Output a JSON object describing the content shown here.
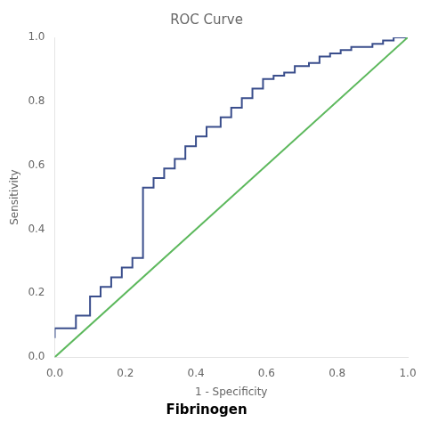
{
  "chart_data": {
    "type": "line",
    "title": "ROC Curve",
    "subtitle": "Fibrinogen",
    "xlabel": "1 - Specificity",
    "ylabel": "Sensitivity",
    "xlim": [
      0.0,
      1.0
    ],
    "ylim": [
      0.0,
      1.0
    ],
    "xticks": [
      {
        "value": 0.0,
        "label": "0.0"
      },
      0.2,
      0.4,
      0.6,
      0.8,
      {
        "value": 1.0,
        "label": "1.0"
      }
    ],
    "yticks": [
      {
        "value": 0.0,
        "label": "0.0"
      },
      0.2,
      0.4,
      0.6,
      0.8,
      {
        "value": 1.0,
        "label": "1.0"
      }
    ],
    "grid": false,
    "series": [
      {
        "color": "#5cb85c",
        "x": [
          0,
          1
        ],
        "values": [
          0,
          1
        ]
      },
      {
        "color": "#3a4e8c",
        "x": [
          0.0,
          0.0,
          0.06,
          0.06,
          0.1,
          0.1,
          0.13,
          0.13,
          0.16,
          0.16,
          0.19,
          0.19,
          0.22,
          0.22,
          0.25,
          0.25,
          0.25,
          0.25,
          0.28,
          0.28,
          0.31,
          0.31,
          0.34,
          0.34,
          0.37,
          0.37,
          0.4,
          0.4,
          0.43,
          0.43,
          0.47,
          0.47,
          0.5,
          0.5,
          0.53,
          0.53,
          0.56,
          0.56,
          0.59,
          0.59,
          0.62,
          0.62,
          0.65,
          0.65,
          0.68,
          0.68,
          0.72,
          0.72,
          0.75,
          0.75,
          0.78,
          0.78,
          0.81,
          0.81,
          0.84,
          0.84,
          0.87,
          0.87,
          0.9,
          0.9,
          0.93,
          0.93,
          0.96,
          0.96,
          1.0
        ],
        "values": [
          0.06,
          0.09,
          0.09,
          0.13,
          0.13,
          0.19,
          0.19,
          0.22,
          0.22,
          0.25,
          0.25,
          0.28,
          0.28,
          0.31,
          0.31,
          0.38,
          0.5,
          0.53,
          0.53,
          0.56,
          0.56,
          0.59,
          0.59,
          0.62,
          0.62,
          0.66,
          0.66,
          0.69,
          0.69,
          0.72,
          0.72,
          0.75,
          0.75,
          0.78,
          0.78,
          0.81,
          0.81,
          0.84,
          0.84,
          0.87,
          0.87,
          0.88,
          0.88,
          0.89,
          0.89,
          0.91,
          0.91,
          0.92,
          0.92,
          0.94,
          0.94,
          0.95,
          0.95,
          0.96,
          0.96,
          0.97,
          0.97,
          0.97,
          0.97,
          0.98,
          0.98,
          0.99,
          0.99,
          1.0,
          1.0
        ]
      }
    ]
  }
}
